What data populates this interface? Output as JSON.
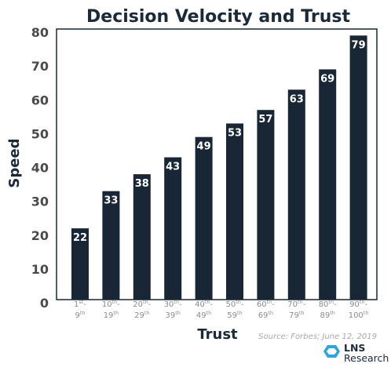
{
  "chart_data": {
    "type": "bar",
    "title": "Decision Velocity and Trust",
    "xlabel": "Trust",
    "ylabel": "Speed",
    "ylim": [
      0,
      80
    ],
    "yticks": [
      0,
      10,
      20,
      30,
      40,
      50,
      60,
      70,
      80
    ],
    "grid": false,
    "legend": "none",
    "bar_color": "#182635",
    "categories": [
      {
        "top": [
          "1",
          "st",
          "-"
        ],
        "bottom": [
          "9",
          "th",
          ""
        ]
      },
      {
        "top": [
          "10",
          "th",
          "-"
        ],
        "bottom": [
          "19",
          "th",
          ""
        ]
      },
      {
        "top": [
          "20",
          "th",
          "-"
        ],
        "bottom": [
          "29",
          "th",
          ""
        ]
      },
      {
        "top": [
          "30",
          "th",
          "-"
        ],
        "bottom": [
          "39",
          "th",
          ""
        ]
      },
      {
        "top": [
          "40",
          "th",
          "-"
        ],
        "bottom": [
          "49",
          "th",
          ""
        ]
      },
      {
        "top": [
          "50",
          "th",
          "-"
        ],
        "bottom": [
          "59",
          "th",
          ""
        ]
      },
      {
        "top": [
          "60",
          "th",
          "-"
        ],
        "bottom": [
          "69",
          "th",
          ""
        ]
      },
      {
        "top": [
          "70",
          "th",
          "-"
        ],
        "bottom": [
          "79",
          "th",
          ""
        ]
      },
      {
        "top": [
          "80",
          "th",
          "-"
        ],
        "bottom": [
          "89",
          "th",
          ""
        ]
      },
      {
        "top": [
          "90",
          "th",
          "-"
        ],
        "bottom": [
          "100",
          "th",
          ""
        ]
      }
    ],
    "values": [
      22,
      33,
      38,
      43,
      49,
      53,
      57,
      63,
      69,
      79
    ],
    "data_labels": [
      "22",
      "33",
      "38",
      "43",
      "49",
      "53",
      "57",
      "63",
      "69",
      "79"
    ]
  },
  "source": "Source: Forbes; June 12, 2019",
  "logo": {
    "line1": "LNS",
    "line2": "Research",
    "icon": "lns-logo-icon"
  }
}
